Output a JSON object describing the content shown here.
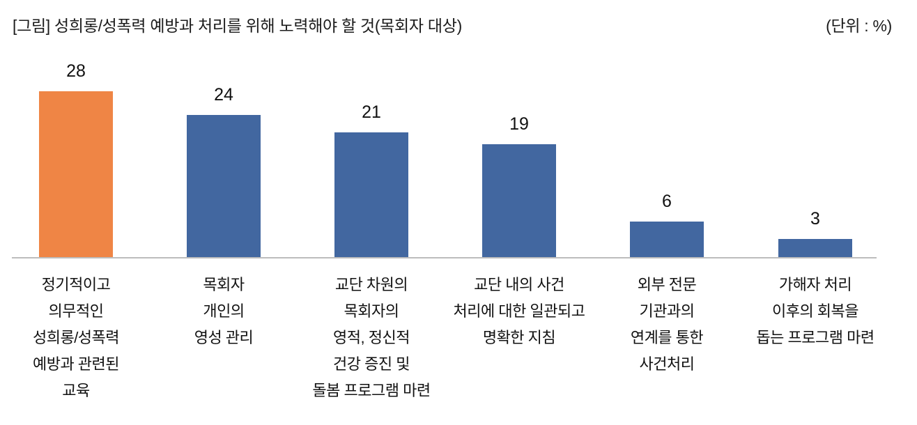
{
  "header": {
    "title": "[그림] 성희롱/성폭력 예방과 처리를 위해 노력해야 할 것(목회자 대상)",
    "unit_label": "(단위 : %)"
  },
  "chart_data": {
    "type": "bar",
    "title": "성희롱/성폭력 예방과 처리를 위해 노력해야 할 것(목회자 대상)",
    "unit": "%",
    "categories": [
      "정기적이고 의무적인 성희롱/성폭력 예방과 관련된 교육",
      "목회자 개인의 영성 관리",
      "교단 차원의 목회자의 영적, 정신적 건강 증진 및 돌봄 프로그램 마련",
      "교단 내의 사건 처리에 대한 일관되고 명확한 지침",
      "외부 전문 기관과의 연계를 통한 사건처리",
      "가해자 처리 이후의 회복을 돕는 프로그램 마련"
    ],
    "category_lines": [
      [
        "정기적이고",
        "의무적인",
        "성희롱/성폭력",
        "예방과 관련된",
        "교육"
      ],
      [
        "목회자",
        "개인의",
        "영성 관리"
      ],
      [
        "교단 차원의",
        "목회자의",
        "영적, 정신적",
        "건강 증진 및",
        "돌봄 프로그램 마련"
      ],
      [
        "교단 내의 사건",
        "처리에 대한 일관되고",
        "명확한 지침"
      ],
      [
        "외부 전문",
        "기관과의",
        "연계를 통한",
        "사건처리"
      ],
      [
        "가해자 처리",
        "이후의 회복을",
        "돕는 프로그램 마련"
      ]
    ],
    "values": [
      28,
      24,
      21,
      19,
      6,
      3
    ],
    "bar_colors": [
      "#EF8545",
      "#4267A0",
      "#4267A0",
      "#4267A0",
      "#4267A0",
      "#4267A0"
    ],
    "highlight_color": "#EF8545",
    "default_color": "#4267A0",
    "axis_color": "#BDBDBD",
    "ylim": [
      0,
      30
    ],
    "grid": false,
    "legend": false,
    "value_labels": true,
    "xlabel": "",
    "ylabel": ""
  }
}
